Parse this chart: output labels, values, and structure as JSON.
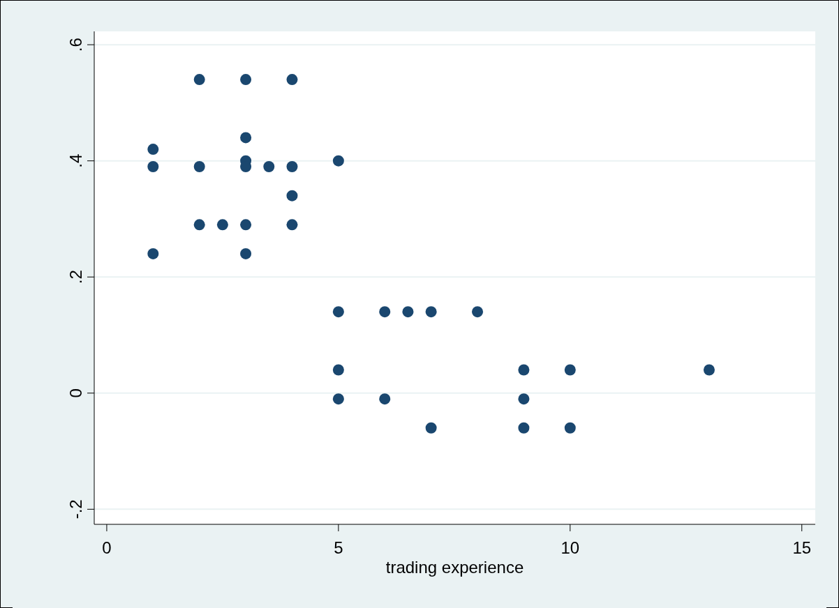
{
  "chart_data": {
    "type": "scatter",
    "xlabel": "trading experience",
    "x": [
      1,
      1,
      1,
      2,
      2,
      2,
      2.5,
      3,
      3,
      3,
      3,
      3,
      3,
      3.5,
      4,
      4,
      4,
      4,
      5,
      5,
      5,
      5,
      6,
      6,
      6.5,
      7,
      7,
      8,
      9,
      9,
      9,
      10,
      10,
      13
    ],
    "series": [
      {
        "color": "#1a476f",
        "values": [
          0.42,
          0.39,
          0.24,
          0.54,
          0.39,
          0.29,
          0.29,
          0.54,
          0.44,
          0.4,
          0.39,
          0.29,
          0.24,
          0.39,
          0.54,
          0.39,
          0.34,
          0.29,
          0.4,
          0.14,
          0.04,
          -0.01,
          0.14,
          -0.01,
          0.14,
          0.14,
          -0.06,
          0.14,
          0.04,
          -0.01,
          -0.06,
          0.04,
          -0.06,
          0.04
        ]
      }
    ],
    "xlim": [
      -0.27,
      15.29
    ],
    "xticks": [
      0,
      5,
      10,
      15
    ],
    "ylim": [
      -0.226,
      0.623
    ],
    "yticks": [
      {
        "value": -0.2,
        "label": "-.2"
      },
      {
        "value": 0,
        "label": "0"
      },
      {
        "value": 0.2,
        "label": ".2"
      },
      {
        "value": 0.4,
        "label": ".4"
      },
      {
        "value": 0.6,
        "label": ".6"
      }
    ],
    "grid": "y",
    "marker": "circle"
  }
}
